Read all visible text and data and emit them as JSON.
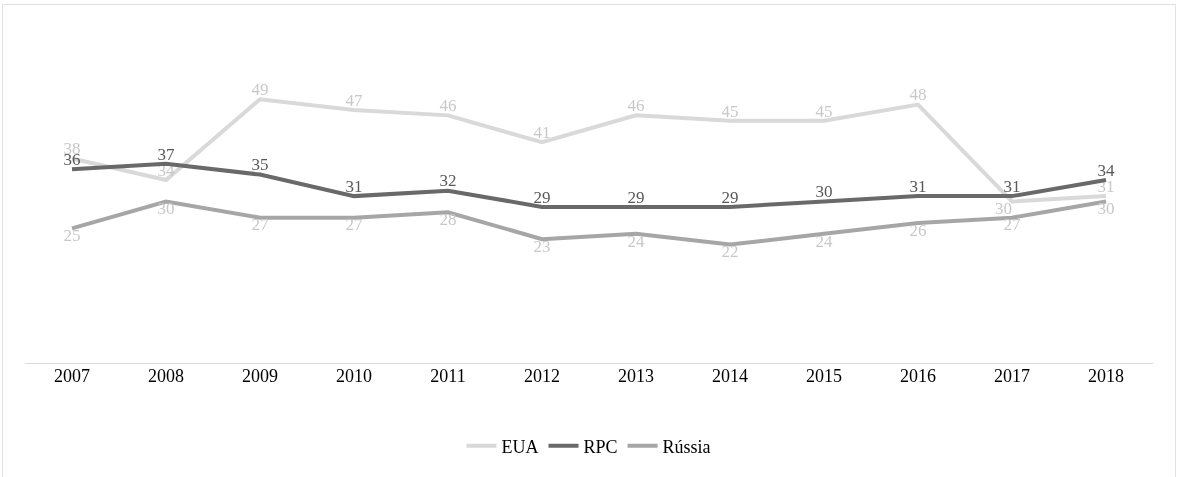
{
  "chart_data": {
    "type": "line",
    "categories": [
      "2007",
      "2008",
      "2009",
      "2010",
      "2011",
      "2012",
      "2013",
      "2014",
      "2015",
      "2016",
      "2017",
      "2018"
    ],
    "series": [
      {
        "name": "EUA",
        "color": "#d9d9d9",
        "values": [
          38,
          34,
          49,
          47,
          46,
          41,
          46,
          45,
          45,
          48,
          30,
          31
        ]
      },
      {
        "name": "RPC",
        "color": "#696969",
        "values": [
          36,
          37,
          35,
          31,
          32,
          29,
          29,
          29,
          30,
          31,
          31,
          34
        ]
      },
      {
        "name": "Rússia",
        "color": "#a6a6a6",
        "values": [
          25,
          30,
          27,
          27,
          28,
          23,
          24,
          22,
          24,
          26,
          27,
          30
        ]
      }
    ],
    "data_labels": true,
    "grid": false,
    "legend": "bottom",
    "marker": "none",
    "line_style": "solid"
  }
}
